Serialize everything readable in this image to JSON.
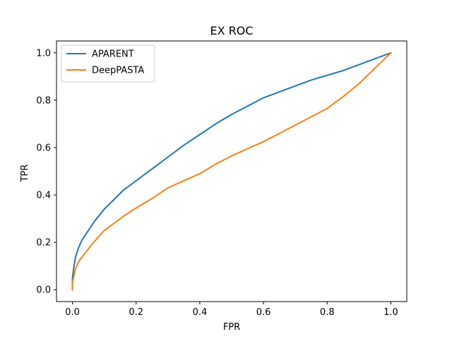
{
  "chart_data": {
    "type": "line",
    "title": "EX ROC",
    "xlabel": "FPR",
    "ylabel": "TPR",
    "xlim": [
      -0.05,
      1.05
    ],
    "ylim": [
      -0.05,
      1.05
    ],
    "xticks": [
      0.0,
      0.2,
      0.4,
      0.6,
      0.8,
      1.0
    ],
    "xtick_labels": [
      "0.0",
      "0.2",
      "0.4",
      "0.6",
      "0.8",
      "1.0"
    ],
    "yticks": [
      0.0,
      0.2,
      0.4,
      0.6,
      0.8,
      1.0
    ],
    "ytick_labels": [
      "0.0",
      "0.2",
      "0.4",
      "0.6",
      "0.8",
      "1.0"
    ],
    "grid": false,
    "legend_position": "upper-left",
    "series": [
      {
        "name": "APARENT",
        "color": "#1f77b4",
        "x": [
          0.0,
          0.0,
          0.005,
          0.01,
          0.02,
          0.03,
          0.05,
          0.07,
          0.1,
          0.13,
          0.16,
          0.2,
          0.25,
          0.3,
          0.35,
          0.4,
          0.45,
          0.5,
          0.55,
          0.6,
          0.65,
          0.7,
          0.75,
          0.8,
          0.85,
          0.9,
          0.95,
          1.0
        ],
        "y": [
          0.0,
          0.05,
          0.1,
          0.14,
          0.18,
          0.21,
          0.25,
          0.29,
          0.34,
          0.38,
          0.42,
          0.46,
          0.51,
          0.56,
          0.61,
          0.655,
          0.7,
          0.74,
          0.775,
          0.81,
          0.835,
          0.86,
          0.885,
          0.905,
          0.925,
          0.95,
          0.975,
          1.0
        ]
      },
      {
        "name": "DeepPASTA",
        "color": "#ff7f0e",
        "x": [
          0.0,
          0.0,
          0.005,
          0.01,
          0.02,
          0.04,
          0.06,
          0.08,
          0.1,
          0.13,
          0.16,
          0.2,
          0.25,
          0.3,
          0.35,
          0.4,
          0.45,
          0.5,
          0.55,
          0.6,
          0.65,
          0.7,
          0.75,
          0.8,
          0.85,
          0.9,
          0.95,
          1.0
        ],
        "y": [
          0.0,
          0.03,
          0.06,
          0.09,
          0.12,
          0.155,
          0.19,
          0.22,
          0.25,
          0.28,
          0.31,
          0.345,
          0.385,
          0.43,
          0.46,
          0.49,
          0.53,
          0.565,
          0.595,
          0.625,
          0.66,
          0.695,
          0.73,
          0.765,
          0.815,
          0.87,
          0.935,
          1.0
        ]
      }
    ]
  }
}
